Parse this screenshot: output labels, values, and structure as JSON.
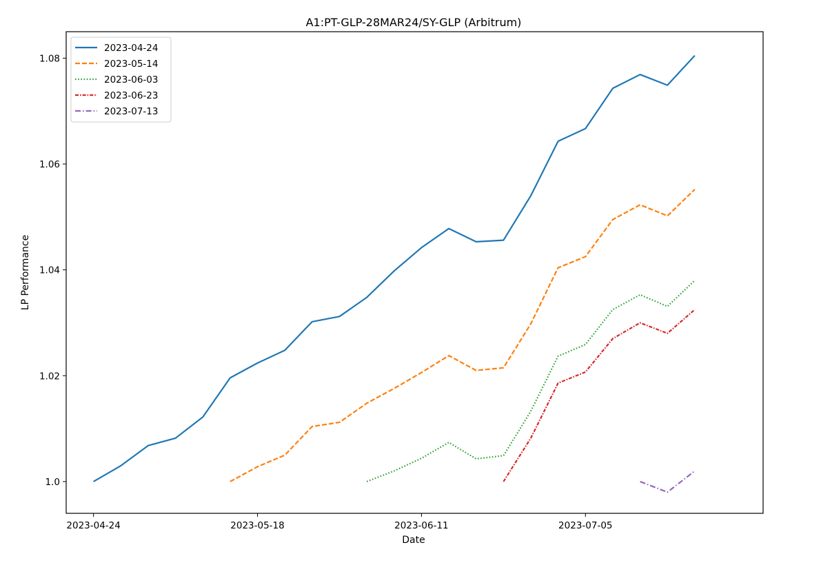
{
  "chart_data": {
    "type": "line",
    "title": "A1:PT-GLP-28MAR24/SY-GLP (Arbitrum)",
    "xlabel": "Date",
    "ylabel": "LP Performance",
    "x_type": "date",
    "xlim": [
      "2023-04-20",
      "2023-07-31"
    ],
    "ylim": [
      0.994,
      1.085
    ],
    "x_ticks": [
      "2023-04-24",
      "2023-05-18",
      "2023-06-11",
      "2023-07-05"
    ],
    "y_ticks": [
      1.0,
      1.02,
      1.04,
      1.06,
      1.08
    ],
    "y_tick_labels": [
      "1.0",
      "1.02",
      "1.04",
      "1.06",
      "1.08"
    ],
    "grid": false,
    "legend_position": "upper-left",
    "series": [
      {
        "name": "2023-04-24",
        "color": "#1f77b4",
        "dash": "solid",
        "x": [
          "2023-04-24",
          "2023-04-28",
          "2023-05-02",
          "2023-05-06",
          "2023-05-10",
          "2023-05-14",
          "2023-05-18",
          "2023-05-22",
          "2023-05-26",
          "2023-05-30",
          "2023-06-03",
          "2023-06-07",
          "2023-06-11",
          "2023-06-15",
          "2023-06-19",
          "2023-06-23",
          "2023-06-27",
          "2023-07-01",
          "2023-07-05",
          "2023-07-09",
          "2023-07-13",
          "2023-07-17",
          "2023-07-21"
        ],
        "y": [
          1.0,
          1.003,
          1.0068,
          1.0082,
          1.0122,
          1.0196,
          1.0224,
          1.0248,
          1.0302,
          1.0312,
          1.0348,
          1.0398,
          1.0442,
          1.0478,
          1.0453,
          1.0456,
          1.054,
          1.0643,
          1.0667,
          1.0743,
          1.0769,
          1.0749,
          1.0805
        ]
      },
      {
        "name": "2023-05-14",
        "color": "#ff7f0e",
        "dash": "dashed",
        "x": [
          "2023-05-14",
          "2023-05-18",
          "2023-05-22",
          "2023-05-26",
          "2023-05-30",
          "2023-06-03",
          "2023-06-07",
          "2023-06-11",
          "2023-06-15",
          "2023-06-19",
          "2023-06-23",
          "2023-06-27",
          "2023-07-01",
          "2023-07-05",
          "2023-07-09",
          "2023-07-13",
          "2023-07-17",
          "2023-07-21"
        ],
        "y": [
          1.0,
          1.0028,
          1.005,
          1.0104,
          1.0112,
          1.0148,
          1.0176,
          1.0206,
          1.0238,
          1.021,
          1.0215,
          1.0298,
          1.0404,
          1.0425,
          1.0495,
          1.0523,
          1.0502,
          1.0552
        ]
      },
      {
        "name": "2023-06-03",
        "color": "#2ca02c",
        "dash": "dotted",
        "x": [
          "2023-06-03",
          "2023-06-07",
          "2023-06-11",
          "2023-06-15",
          "2023-06-19",
          "2023-06-23",
          "2023-06-27",
          "2023-07-01",
          "2023-07-05",
          "2023-07-09",
          "2023-07-13",
          "2023-07-17",
          "2023-07-21"
        ],
        "y": [
          1.0,
          1.002,
          1.0044,
          1.0074,
          1.0043,
          1.0049,
          1.0133,
          1.0237,
          1.0259,
          1.0325,
          1.0353,
          1.0331,
          1.038
        ]
      },
      {
        "name": "2023-06-23",
        "color": "#d62728",
        "dash": "dashdot-fine",
        "x": [
          "2023-06-23",
          "2023-06-27",
          "2023-07-01",
          "2023-07-05",
          "2023-07-09",
          "2023-07-13",
          "2023-07-17",
          "2023-07-21"
        ],
        "y": [
          1.0,
          1.0082,
          1.0186,
          1.0207,
          1.027,
          1.03,
          1.028,
          1.0325
        ]
      },
      {
        "name": "2023-07-13",
        "color": "#9467bd",
        "dash": "dashdot",
        "x": [
          "2023-07-13",
          "2023-07-17",
          "2023-07-21"
        ],
        "y": [
          1.0,
          0.998,
          1.002
        ]
      }
    ]
  }
}
